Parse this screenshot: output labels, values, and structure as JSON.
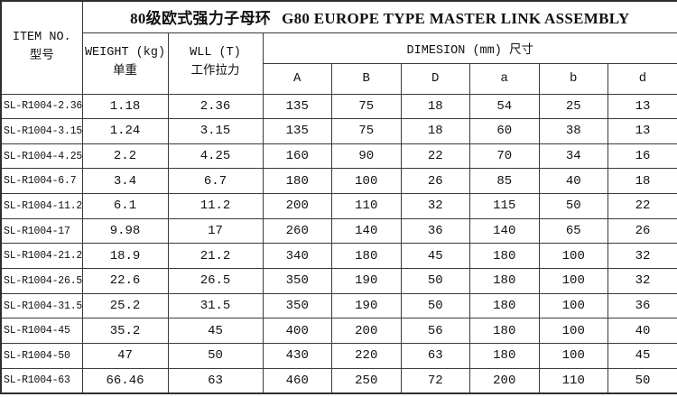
{
  "title": {
    "cn": "80级欧式强力子母环",
    "en": "G80 EUROPE TYPE MASTER LINK ASSEMBLY"
  },
  "header": {
    "item_no_en": "ITEM NO.",
    "item_no_cn": "型号",
    "weight_en": "WEIGHT (kg)",
    "weight_cn": "单重",
    "wll_en": "WLL (T)",
    "wll_cn": "工作拉力",
    "dimension": "DIMESION (mm) 尺寸",
    "dim_columns": [
      "A",
      "B",
      "D",
      "a",
      "b",
      "d"
    ]
  },
  "table": {
    "rows": [
      [
        "SL-R1004-2.36",
        "1.18",
        "2.36",
        "135",
        "75",
        "18",
        "54",
        "25",
        "13"
      ],
      [
        "SL-R1004-3.15",
        "1.24",
        "3.15",
        "135",
        "75",
        "18",
        "60",
        "38",
        "13"
      ],
      [
        "SL-R1004-4.25",
        "2.2",
        "4.25",
        "160",
        "90",
        "22",
        "70",
        "34",
        "16"
      ],
      [
        "SL-R1004-6.7",
        "3.4",
        "6.7",
        "180",
        "100",
        "26",
        "85",
        "40",
        "18"
      ],
      [
        "SL-R1004-11.2",
        "6.1",
        "11.2",
        "200",
        "110",
        "32",
        "115",
        "50",
        "22"
      ],
      [
        "SL-R1004-17",
        "9.98",
        "17",
        "260",
        "140",
        "36",
        "140",
        "65",
        "26"
      ],
      [
        "SL-R1004-21.2",
        "18.9",
        "21.2",
        "340",
        "180",
        "45",
        "180",
        "100",
        "32"
      ],
      [
        "SL-R1004-26.5",
        "22.6",
        "26.5",
        "350",
        "190",
        "50",
        "180",
        "100",
        "32"
      ],
      [
        "SL-R1004-31.5",
        "25.2",
        "31.5",
        "350",
        "190",
        "50",
        "180",
        "100",
        "36"
      ],
      [
        "SL-R1004-45",
        "35.2",
        "45",
        "400",
        "200",
        "56",
        "180",
        "100",
        "40"
      ],
      [
        "SL-R1004-50",
        "47",
        "50",
        "430",
        "220",
        "63",
        "180",
        "100",
        "45"
      ],
      [
        "SL-R1004-63",
        "66.46",
        "63",
        "460",
        "250",
        "72",
        "200",
        "110",
        "50"
      ]
    ]
  },
  "colors": {
    "border_outer": "#2e2e2e",
    "border_inner": "#3a3a3a",
    "background": "#ffffff",
    "text": "#111111"
  }
}
